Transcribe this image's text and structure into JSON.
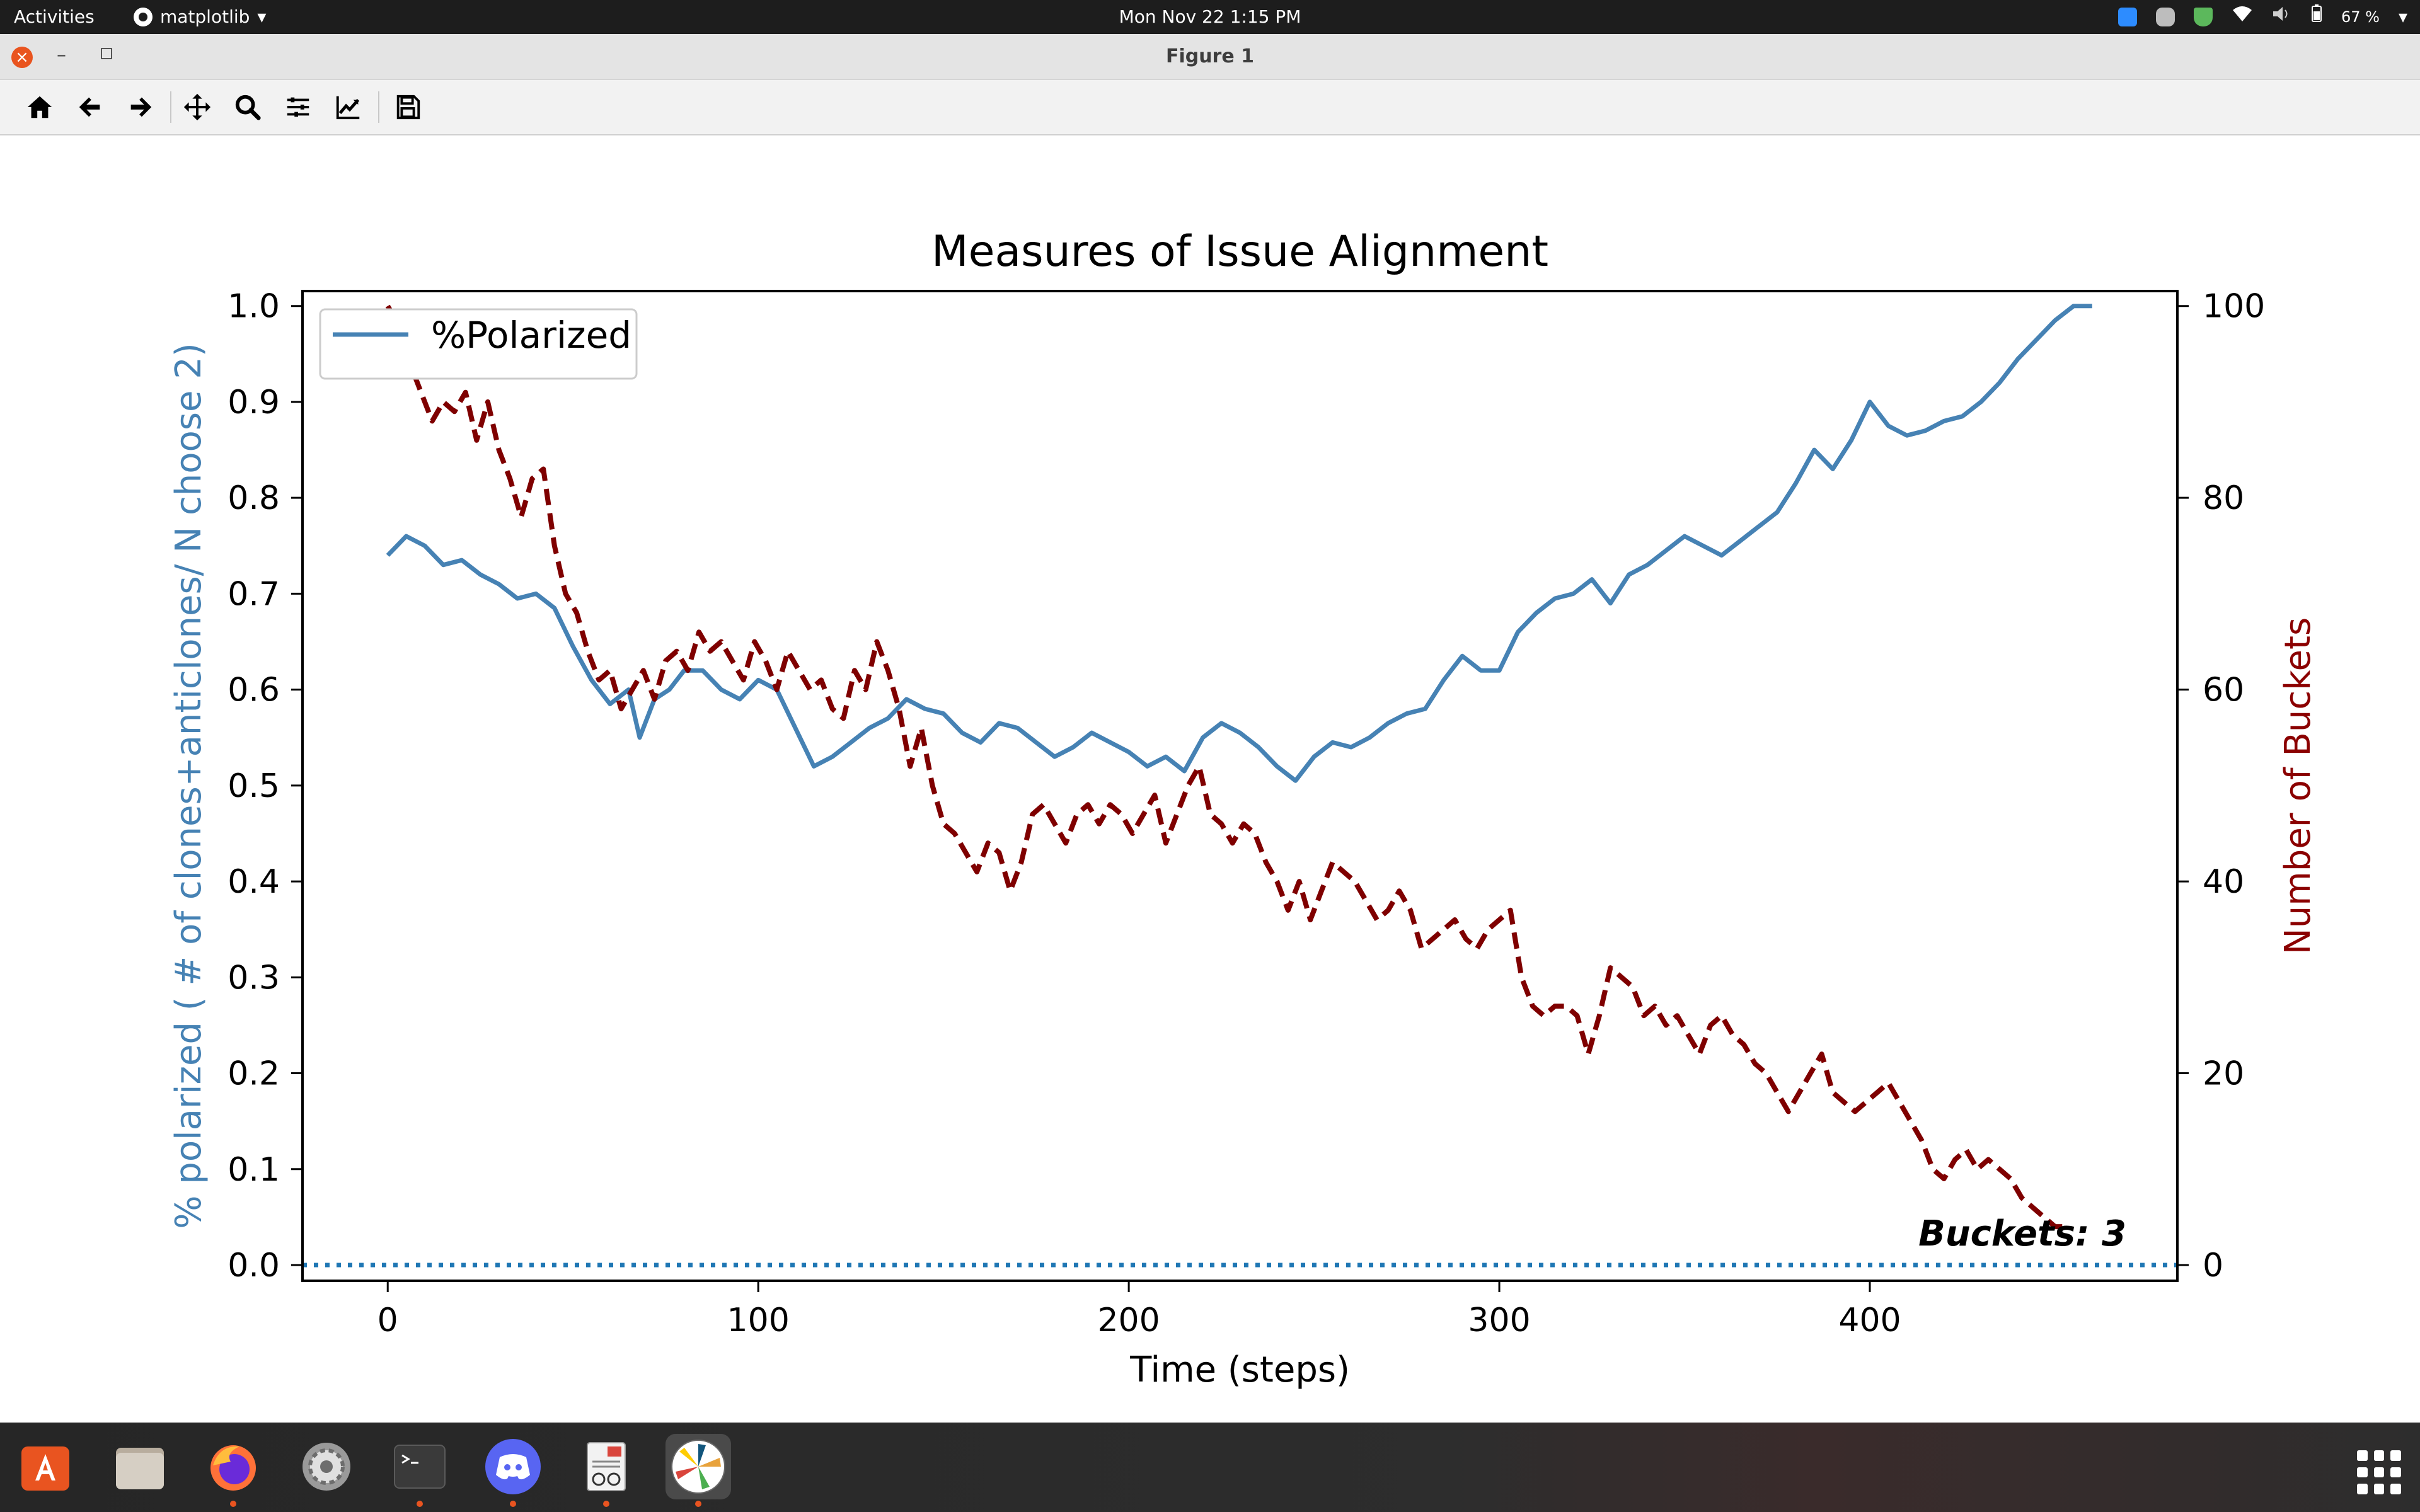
{
  "system_bar": {
    "activities": "Activities",
    "app_name": "matplotlib",
    "clock": "Mon Nov 22   1:15 PM",
    "battery": "67 %"
  },
  "window": {
    "title": "Figure 1",
    "close_label": "×",
    "minimize_label": "–"
  },
  "toolbar": {
    "tools": [
      {
        "name": "home-icon"
      },
      {
        "name": "back-arrow-icon"
      },
      {
        "name": "forward-arrow-icon"
      },
      {
        "name": "pan-icon"
      },
      {
        "name": "zoom-icon"
      },
      {
        "name": "subplots-icon"
      },
      {
        "name": "edit-curves-icon"
      },
      {
        "name": "save-icon"
      }
    ]
  },
  "chart_data": {
    "type": "line",
    "title": "Measures of Issue Alignment",
    "xlabel": "Time (steps)",
    "ylabel_left": "% polarized ( # of clones+anticlones/ N choose 2)",
    "ylabel_right": "Number of Buckets",
    "xlim": [
      -23,
      483
    ],
    "ylim_left": [
      0.0,
      1.0
    ],
    "ylim_right": [
      0,
      100
    ],
    "xticks": [
      "0",
      "100",
      "200",
      "300",
      "400"
    ],
    "yticks_left": [
      "0.0",
      "0.1",
      "0.2",
      "0.3",
      "0.4",
      "0.5",
      "0.6",
      "0.7",
      "0.8",
      "0.9",
      "1.0"
    ],
    "yticks_right": [
      "0",
      "20",
      "40",
      "60",
      "80",
      "100"
    ],
    "grid": false,
    "legend": {
      "position": "top-left",
      "entries": [
        "%Polarized"
      ]
    },
    "annotation": "Buckets: 3",
    "series": [
      {
        "name": "%Polarized",
        "axis": "left",
        "color": "#4682b4",
        "style": "solid",
        "points": [
          [
            0,
            0.74
          ],
          [
            5,
            0.76
          ],
          [
            10,
            0.75
          ],
          [
            15,
            0.73
          ],
          [
            20,
            0.735
          ],
          [
            25,
            0.72
          ],
          [
            30,
            0.71
          ],
          [
            35,
            0.695
          ],
          [
            40,
            0.7
          ],
          [
            45,
            0.685
          ],
          [
            50,
            0.645
          ],
          [
            55,
            0.61
          ],
          [
            60,
            0.585
          ],
          [
            65,
            0.6
          ],
          [
            68,
            0.55
          ],
          [
            72,
            0.59
          ],
          [
            76,
            0.6
          ],
          [
            80,
            0.62
          ],
          [
            85,
            0.62
          ],
          [
            90,
            0.6
          ],
          [
            95,
            0.59
          ],
          [
            100,
            0.61
          ],
          [
            105,
            0.6
          ],
          [
            110,
            0.56
          ],
          [
            115,
            0.52
          ],
          [
            120,
            0.53
          ],
          [
            125,
            0.545
          ],
          [
            130,
            0.56
          ],
          [
            135,
            0.57
          ],
          [
            140,
            0.59
          ],
          [
            145,
            0.58
          ],
          [
            150,
            0.575
          ],
          [
            155,
            0.555
          ],
          [
            160,
            0.545
          ],
          [
            165,
            0.565
          ],
          [
            170,
            0.56
          ],
          [
            175,
            0.545
          ],
          [
            180,
            0.53
          ],
          [
            185,
            0.54
          ],
          [
            190,
            0.555
          ],
          [
            195,
            0.545
          ],
          [
            200,
            0.535
          ],
          [
            205,
            0.52
          ],
          [
            210,
            0.53
          ],
          [
            215,
            0.515
          ],
          [
            220,
            0.55
          ],
          [
            225,
            0.565
          ],
          [
            230,
            0.555
          ],
          [
            235,
            0.54
          ],
          [
            240,
            0.52
          ],
          [
            245,
            0.505
          ],
          [
            250,
            0.53
          ],
          [
            255,
            0.545
          ],
          [
            260,
            0.54
          ],
          [
            265,
            0.55
          ],
          [
            270,
            0.565
          ],
          [
            275,
            0.575
          ],
          [
            280,
            0.58
          ],
          [
            285,
            0.61
          ],
          [
            290,
            0.635
          ],
          [
            295,
            0.62
          ],
          [
            300,
            0.62
          ],
          [
            305,
            0.66
          ],
          [
            310,
            0.68
          ],
          [
            315,
            0.695
          ],
          [
            320,
            0.7
          ],
          [
            325,
            0.715
          ],
          [
            330,
            0.69
          ],
          [
            335,
            0.72
          ],
          [
            340,
            0.73
          ],
          [
            345,
            0.745
          ],
          [
            350,
            0.76
          ],
          [
            355,
            0.75
          ],
          [
            360,
            0.74
          ],
          [
            365,
            0.755
          ],
          [
            370,
            0.77
          ],
          [
            375,
            0.785
          ],
          [
            380,
            0.815
          ],
          [
            385,
            0.85
          ],
          [
            390,
            0.83
          ],
          [
            395,
            0.86
          ],
          [
            400,
            0.9
          ],
          [
            405,
            0.875
          ],
          [
            410,
            0.865
          ],
          [
            415,
            0.87
          ],
          [
            420,
            0.88
          ],
          [
            425,
            0.885
          ],
          [
            430,
            0.9
          ],
          [
            435,
            0.92
          ],
          [
            440,
            0.945
          ],
          [
            445,
            0.965
          ],
          [
            450,
            0.985
          ],
          [
            455,
            1.0
          ],
          [
            460,
            1.0
          ]
        ]
      },
      {
        "name": "",
        "axis": "right",
        "color": "#7f0000",
        "style": "dashed",
        "points": [
          [
            0,
            100
          ],
          [
            3,
            98
          ],
          [
            6,
            94
          ],
          [
            9,
            91
          ],
          [
            12,
            88
          ],
          [
            15,
            90
          ],
          [
            18,
            89
          ],
          [
            21,
            91
          ],
          [
            24,
            86
          ],
          [
            27,
            90
          ],
          [
            30,
            85
          ],
          [
            33,
            82
          ],
          [
            36,
            78
          ],
          [
            39,
            82
          ],
          [
            42,
            83
          ],
          [
            45,
            75
          ],
          [
            48,
            70
          ],
          [
            51,
            68
          ],
          [
            54,
            64
          ],
          [
            57,
            61
          ],
          [
            60,
            62
          ],
          [
            63,
            58
          ],
          [
            66,
            60
          ],
          [
            69,
            62
          ],
          [
            72,
            59
          ],
          [
            75,
            63
          ],
          [
            78,
            64
          ],
          [
            81,
            62
          ],
          [
            84,
            66
          ],
          [
            87,
            64
          ],
          [
            90,
            65
          ],
          [
            93,
            63
          ],
          [
            96,
            61
          ],
          [
            99,
            65
          ],
          [
            102,
            63
          ],
          [
            105,
            60
          ],
          [
            108,
            64
          ],
          [
            111,
            62
          ],
          [
            114,
            60
          ],
          [
            117,
            61
          ],
          [
            120,
            58
          ],
          [
            123,
            57
          ],
          [
            126,
            62
          ],
          [
            129,
            60
          ],
          [
            132,
            65
          ],
          [
            135,
            62
          ],
          [
            138,
            58
          ],
          [
            141,
            52
          ],
          [
            144,
            56
          ],
          [
            147,
            50
          ],
          [
            150,
            46
          ],
          [
            153,
            45
          ],
          [
            156,
            43
          ],
          [
            159,
            41
          ],
          [
            162,
            44
          ],
          [
            165,
            43
          ],
          [
            168,
            39
          ],
          [
            171,
            42
          ],
          [
            174,
            47
          ],
          [
            177,
            48
          ],
          [
            180,
            46
          ],
          [
            183,
            44
          ],
          [
            186,
            47
          ],
          [
            189,
            48
          ],
          [
            192,
            46
          ],
          [
            195,
            48
          ],
          [
            198,
            47
          ],
          [
            201,
            45
          ],
          [
            204,
            47
          ],
          [
            207,
            49
          ],
          [
            210,
            44
          ],
          [
            213,
            47
          ],
          [
            216,
            50
          ],
          [
            219,
            52
          ],
          [
            222,
            47
          ],
          [
            225,
            46
          ],
          [
            228,
            44
          ],
          [
            231,
            46
          ],
          [
            234,
            45
          ],
          [
            237,
            42
          ],
          [
            240,
            40
          ],
          [
            243,
            37
          ],
          [
            246,
            40
          ],
          [
            249,
            36
          ],
          [
            252,
            39
          ],
          [
            255,
            42
          ],
          [
            258,
            41
          ],
          [
            261,
            40
          ],
          [
            264,
            38
          ],
          [
            267,
            36
          ],
          [
            270,
            37
          ],
          [
            273,
            39
          ],
          [
            276,
            37
          ],
          [
            279,
            33
          ],
          [
            282,
            34
          ],
          [
            285,
            35
          ],
          [
            288,
            36
          ],
          [
            291,
            34
          ],
          [
            294,
            33
          ],
          [
            297,
            35
          ],
          [
            300,
            36
          ],
          [
            303,
            37
          ],
          [
            306,
            30
          ],
          [
            309,
            27
          ],
          [
            312,
            26
          ],
          [
            315,
            27
          ],
          [
            318,
            27
          ],
          [
            321,
            26
          ],
          [
            324,
            22
          ],
          [
            327,
            26
          ],
          [
            330,
            31
          ],
          [
            333,
            30
          ],
          [
            336,
            29
          ],
          [
            339,
            26
          ],
          [
            342,
            27
          ],
          [
            345,
            25
          ],
          [
            348,
            26
          ],
          [
            351,
            24
          ],
          [
            354,
            22
          ],
          [
            357,
            25
          ],
          [
            360,
            26
          ],
          [
            363,
            24
          ],
          [
            366,
            23
          ],
          [
            369,
            21
          ],
          [
            372,
            20
          ],
          [
            375,
            18
          ],
          [
            378,
            16
          ],
          [
            381,
            18
          ],
          [
            384,
            20
          ],
          [
            387,
            22
          ],
          [
            390,
            18
          ],
          [
            393,
            17
          ],
          [
            396,
            16
          ],
          [
            399,
            17
          ],
          [
            402,
            18
          ],
          [
            405,
            19
          ],
          [
            408,
            17
          ],
          [
            411,
            15
          ],
          [
            414,
            13
          ],
          [
            417,
            10
          ],
          [
            420,
            9
          ],
          [
            423,
            11
          ],
          [
            426,
            12
          ],
          [
            429,
            10
          ],
          [
            432,
            11
          ],
          [
            435,
            10
          ],
          [
            438,
            9
          ],
          [
            441,
            7
          ],
          [
            444,
            6
          ],
          [
            447,
            5
          ],
          [
            450,
            4
          ],
          [
            453,
            4
          ]
        ]
      },
      {
        "name": "",
        "axis": "right",
        "color": "#1f77b4",
        "style": "dotted",
        "points": [
          [
            -23,
            0
          ],
          [
            483,
            0
          ]
        ]
      }
    ]
  },
  "dock": {
    "items": [
      {
        "name": "ubuntu-software-icon",
        "active": false,
        "running": false
      },
      {
        "name": "files-icon",
        "active": false,
        "running": false
      },
      {
        "name": "firefox-icon",
        "active": false,
        "running": true
      },
      {
        "name": "settings-icon",
        "active": false,
        "running": false
      },
      {
        "name": "terminal-icon",
        "active": false,
        "running": true
      },
      {
        "name": "discord-icon",
        "active": false,
        "running": true
      },
      {
        "name": "document-viewer-icon",
        "active": false,
        "running": true
      },
      {
        "name": "matplotlib-icon",
        "active": true,
        "running": true
      }
    ]
  }
}
